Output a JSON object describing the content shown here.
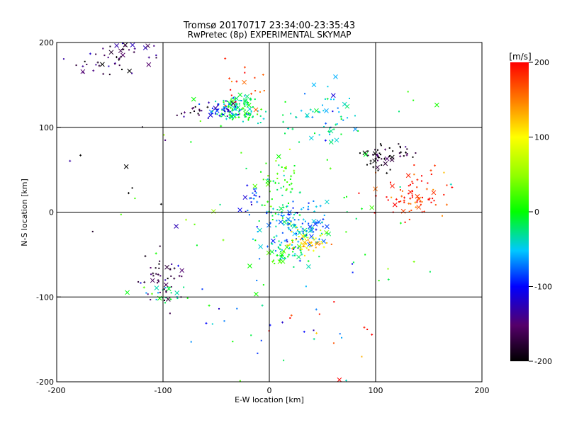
{
  "chart_data": {
    "type": "scatter",
    "title": "Tromsø 20170717 23:34:00-23:35:43",
    "subtitle": "RwPretec (8p) EXPERIMENTAL SKYMAP",
    "xlabel": "E-W location [km]",
    "ylabel": "N-S location [km]",
    "xlim": [
      -200,
      200
    ],
    "ylim": [
      -200,
      200
    ],
    "xticks": [
      -200,
      -100,
      0,
      100,
      200
    ],
    "yticks": [
      -200,
      -100,
      0,
      100,
      200
    ],
    "grid_lines": [
      -100,
      0,
      100
    ],
    "colorbar": {
      "label": "[m/s]",
      "min": -200,
      "max": 200,
      "ticks": [
        200,
        100,
        0,
        -100,
        -200
      ]
    },
    "clusters": [
      {
        "x": -150,
        "y": 180,
        "n": 40,
        "sx": 18,
        "sy": 12,
        "v": -170
      },
      {
        "x": -130,
        "y": 195,
        "n": 12,
        "sx": 12,
        "sy": 4,
        "v": -150
      },
      {
        "x": -30,
        "y": 120,
        "n": 120,
        "sx": 10,
        "sy": 8,
        "v": -20
      },
      {
        "x": -45,
        "y": 122,
        "n": 35,
        "sx": 8,
        "sy": 5,
        "v": -110
      },
      {
        "x": -75,
        "y": 120,
        "n": 15,
        "sx": 10,
        "sy": 4,
        "v": -180
      },
      {
        "x": 50,
        "y": 110,
        "n": 60,
        "sx": 18,
        "sy": 20,
        "v": -50
      },
      {
        "x": 108,
        "y": 63,
        "n": 55,
        "sx": 12,
        "sy": 8,
        "v": -195
      },
      {
        "x": 135,
        "y": 20,
        "n": 80,
        "sx": 18,
        "sy": 15,
        "v": 185
      },
      {
        "x": 10,
        "y": 30,
        "n": 60,
        "sx": 10,
        "sy": 20,
        "v": 10
      },
      {
        "x": 25,
        "y": -20,
        "n": 140,
        "sx": 18,
        "sy": 15,
        "v": -60
      },
      {
        "x": 35,
        "y": -35,
        "n": 50,
        "sx": 10,
        "sy": 8,
        "v": 110
      },
      {
        "x": 15,
        "y": -50,
        "n": 40,
        "sx": 10,
        "sy": 6,
        "v": -10
      },
      {
        "x": -20,
        "y": 25,
        "n": 20,
        "sx": 6,
        "sy": 12,
        "v": -90
      },
      {
        "x": -100,
        "y": -80,
        "n": 45,
        "sx": 12,
        "sy": 15,
        "v": -170
      },
      {
        "x": -95,
        "y": -97,
        "n": 20,
        "sx": 8,
        "sy": 5,
        "v": -30
      },
      {
        "x": -25,
        "y": 150,
        "n": 18,
        "sx": 15,
        "sy": 15,
        "v": 190
      },
      {
        "x": 0,
        "y": -120,
        "n": 20,
        "sx": 40,
        "sy": 30,
        "v": -80
      },
      {
        "x": 50,
        "y": -150,
        "n": 12,
        "sx": 30,
        "sy": 20,
        "v": 190
      },
      {
        "x": -150,
        "y": 40,
        "n": 12,
        "sx": 50,
        "sy": 80,
        "v": -180
      },
      {
        "x": 0,
        "y": 0,
        "n": 60,
        "sx": 90,
        "sy": 90,
        "v": 0
      }
    ]
  }
}
